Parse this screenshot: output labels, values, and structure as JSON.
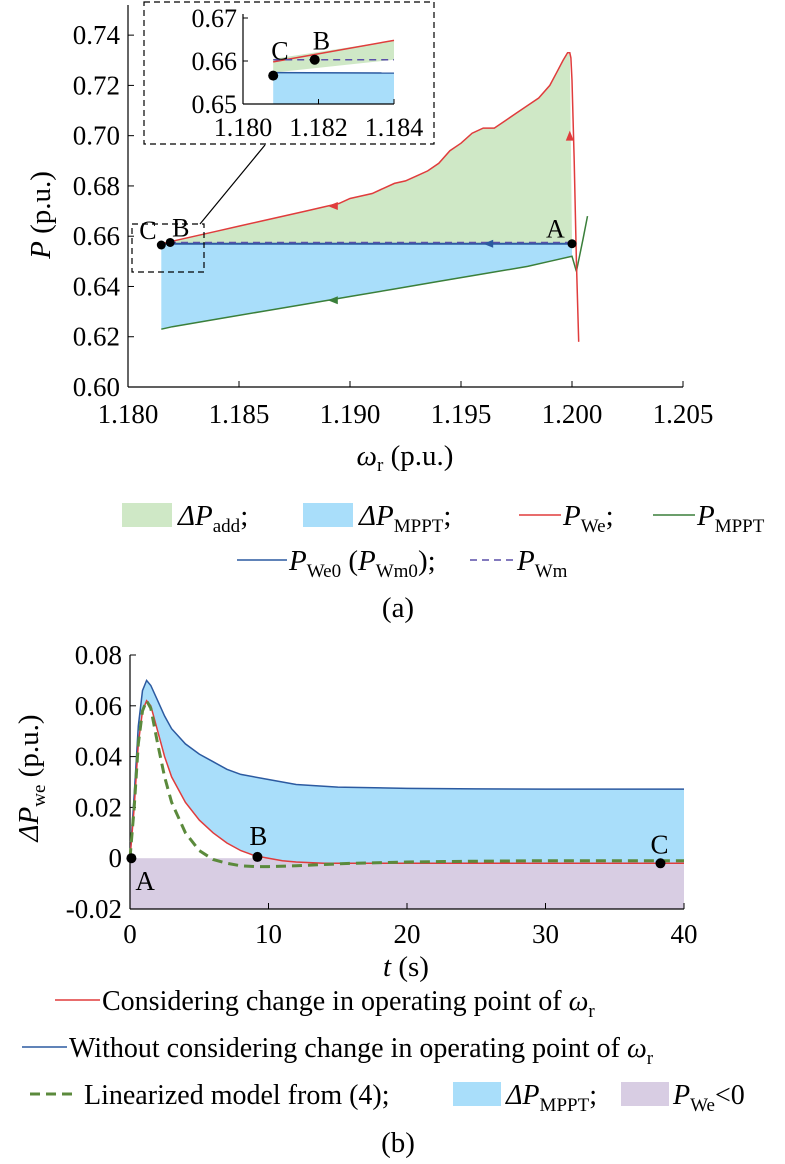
{
  "chart_data": [
    {
      "panel_label": "(a)",
      "type": "line",
      "xlabel": "ω",
      "xlabel_sub": "r",
      "xlabel_unit": " (p.u.)",
      "ylabel": "P",
      "ylabel_unit": " (p.u.)",
      "xlim": [
        1.18,
        1.205
      ],
      "ylim": [
        0.6,
        0.75
      ],
      "xticks": [
        "1.180",
        "1.185",
        "1.190",
        "1.195",
        "1.200",
        "1.205"
      ],
      "yticks": [
        "0.60",
        "0.62",
        "0.64",
        "0.66",
        "0.68",
        "0.70",
        "0.72",
        "0.74"
      ],
      "colors": {
        "P_We": "#e03c3c",
        "P_MPPT": "#3a7f3a",
        "P_We0": "#2c5aa0",
        "P_Wm": "#5a4fa8",
        "dP_add_fill": "#cfe8c6",
        "dP_MPPT_fill": "#a9defa"
      },
      "series": [
        {
          "name": "P_We",
          "x": [
            1.2003,
            1.2002,
            1.2001,
            1.2,
            1.19995,
            1.1999,
            1.1998,
            1.1996,
            1.1993,
            1.199,
            1.1985,
            1.198,
            1.1975,
            1.197,
            1.1965,
            1.196,
            1.1955,
            1.195,
            1.1945,
            1.194,
            1.1935,
            1.193,
            1.1925,
            1.192,
            1.1915,
            1.191,
            1.1905,
            1.19,
            1.1895,
            1.189,
            1.188,
            1.187,
            1.186,
            1.185,
            1.184,
            1.183,
            1.182,
            1.1815
          ],
          "y": [
            0.618,
            0.65,
            0.69,
            0.722,
            0.731,
            0.733,
            0.733,
            0.73,
            0.725,
            0.72,
            0.715,
            0.712,
            0.709,
            0.706,
            0.703,
            0.703,
            0.701,
            0.697,
            0.694,
            0.689,
            0.686,
            0.684,
            0.682,
            0.681,
            0.679,
            0.677,
            0.676,
            0.675,
            0.673,
            0.672,
            0.67,
            0.668,
            0.666,
            0.664,
            0.662,
            0.66,
            0.658,
            0.657
          ]
        },
        {
          "name": "P_MPPT",
          "x": [
            1.2007,
            1.2005,
            1.2002,
            1.2,
            1.199,
            1.198,
            1.196,
            1.194,
            1.192,
            1.19,
            1.188,
            1.186,
            1.184,
            1.182,
            1.1815
          ],
          "y": [
            0.668,
            0.659,
            0.646,
            0.652,
            0.65,
            0.648,
            0.645,
            0.642,
            0.639,
            0.636,
            0.633,
            0.63,
            0.627,
            0.624,
            0.623
          ]
        },
        {
          "name": "P_We0 (P_Wm0)",
          "x": [
            1.2,
            1.1815
          ],
          "y": [
            0.657,
            0.657
          ]
        },
        {
          "name": "P_Wm",
          "dashed": true,
          "x": [
            1.2,
            1.1815
          ],
          "y": [
            0.6575,
            0.6575
          ]
        }
      ],
      "fills": [
        {
          "name": "ΔP_add",
          "between": [
            "P_We",
            "P_We0 (P_Wm0)"
          ]
        },
        {
          "name": "ΔP_MPPT",
          "between": [
            "P_We0 (P_Wm0)",
            "P_MPPT"
          ]
        }
      ],
      "points": [
        {
          "label": "A",
          "x": 1.2,
          "y": 0.657
        },
        {
          "label": "B",
          "x": 1.1819,
          "y": 0.6575
        },
        {
          "label": "C",
          "x": 1.1815,
          "y": 0.6565
        }
      ],
      "inset": {
        "xlim": [
          1.18,
          1.184
        ],
        "ylim": [
          0.65,
          0.67
        ],
        "xticks": [
          "1.180",
          "1.182",
          "1.184"
        ],
        "yticks": [
          "0.65",
          "0.66",
          "0.67"
        ],
        "points": [
          {
            "label": "C",
            "x": 1.1808,
            "y": 0.6566
          },
          {
            "label": "B",
            "x": 1.1819,
            "y": 0.6603
          }
        ]
      },
      "legend": {
        "row1": [
          {
            "kind": "patch",
            "fill": "#cfe8c6",
            "main": "ΔP",
            "sub": "add",
            "sep": ";"
          },
          {
            "kind": "patch",
            "fill": "#a9defa",
            "main": "ΔP",
            "sub": "MPPT",
            "sep": ";"
          },
          {
            "kind": "line",
            "color": "#e03c3c",
            "main": "P",
            "sub": "We",
            "sep": ";"
          },
          {
            "kind": "line",
            "color": "#3a7f3a",
            "main": "P",
            "sub": "MPPT",
            "sep": ""
          }
        ],
        "row2_a": {
          "kind": "line",
          "color": "#2c5aa0",
          "main": "P",
          "sub": "We0",
          "mid": " (",
          "main2": "P",
          "sub2": "Wm0",
          "sep": ");"
        },
        "row2_b": {
          "kind": "dash",
          "color": "#5a4fa8",
          "main": "P",
          "sub": "Wm",
          "sep": ""
        }
      }
    },
    {
      "panel_label": "(b)",
      "type": "line",
      "xlabel": "t",
      "xlabel_unit": " (s)",
      "ylabel": "ΔP",
      "ylabel_sub": "we",
      "ylabel_unit": " (p.u.)",
      "xlim": [
        0,
        40
      ],
      "ylim": [
        -0.02,
        0.08
      ],
      "xticks": [
        "0",
        "10",
        "20",
        "30",
        "40"
      ],
      "yticks": [
        "-0.02",
        "0",
        "0.02",
        "0.04",
        "0.06",
        "0.08"
      ],
      "colors": {
        "with_change": "#e03c3c",
        "without_change": "#2c5aa0",
        "linearized": "#5b8a3c",
        "dP_MPPT_fill": "#a9defa",
        "negative_fill": "#d8cde3"
      },
      "series": [
        {
          "name": "Considering change in operating point of ω",
          "x": [
            0,
            0.3,
            0.6,
            0.9,
            1.2,
            1.5,
            2,
            2.5,
            3,
            4,
            5,
            6,
            7,
            8,
            9,
            10,
            11,
            12,
            14,
            16,
            20,
            25,
            30,
            35,
            40
          ],
          "y": [
            0,
            0.02,
            0.045,
            0.058,
            0.062,
            0.06,
            0.05,
            0.04,
            0.032,
            0.022,
            0.015,
            0.01,
            0.006,
            0.003,
            0.001,
            0.0,
            -0.001,
            -0.0015,
            -0.002,
            -0.002,
            -0.002,
            -0.002,
            -0.002,
            -0.002,
            -0.002
          ]
        },
        {
          "name": "Without considering change in operating point of ω",
          "x": [
            0,
            0.3,
            0.6,
            0.9,
            1.2,
            1.5,
            2,
            2.5,
            3,
            4,
            5,
            6,
            7,
            8,
            10,
            12,
            15,
            20,
            25,
            30,
            35,
            40
          ],
          "y": [
            0,
            0.025,
            0.052,
            0.066,
            0.07,
            0.068,
            0.062,
            0.056,
            0.051,
            0.045,
            0.041,
            0.038,
            0.035,
            0.033,
            0.031,
            0.029,
            0.028,
            0.0275,
            0.0273,
            0.0272,
            0.0272,
            0.0272
          ]
        },
        {
          "name": "Linearized model from (4)",
          "dashed": true,
          "x": [
            0,
            0.3,
            0.6,
            0.9,
            1.2,
            1.5,
            2,
            2.5,
            3,
            4,
            5,
            6,
            7,
            8,
            9,
            10,
            12,
            14,
            16,
            20,
            25,
            30,
            35,
            40
          ],
          "y": [
            0,
            0.02,
            0.045,
            0.058,
            0.062,
            0.059,
            0.045,
            0.032,
            0.022,
            0.01,
            0.003,
            -0.0005,
            -0.002,
            -0.003,
            -0.0033,
            -0.0033,
            -0.003,
            -0.0025,
            -0.002,
            -0.0015,
            -0.0012,
            -0.001,
            -0.001,
            -0.001
          ]
        }
      ],
      "points": [
        {
          "label": "A",
          "x": 0.1,
          "y": 0.0
        },
        {
          "label": "B",
          "x": 9.2,
          "y": 0.0005
        },
        {
          "label": "C",
          "x": 38.3,
          "y": -0.002
        }
      ],
      "legend": {
        "row1": {
          "kind": "line",
          "color": "#e03c3c",
          "text": "Considering change in operating point of ",
          "sym": "ω",
          "sub": "r"
        },
        "row2": {
          "kind": "line",
          "color": "#2c5aa0",
          "text": "Without considering change in operating point of ",
          "sym": "ω",
          "sub": "r"
        },
        "row3_a": {
          "kind": "dash",
          "color": "#5b8a3c",
          "text": "Linearized model from (4);"
        },
        "row3_b": {
          "kind": "patch",
          "fill": "#a9defa",
          "main": "ΔP",
          "sub": "MPPT",
          "sep": ";"
        },
        "row3_c": {
          "kind": "patch",
          "fill": "#d8cde3",
          "main": "P",
          "sub": "We",
          "sep": "<0"
        }
      }
    }
  ]
}
